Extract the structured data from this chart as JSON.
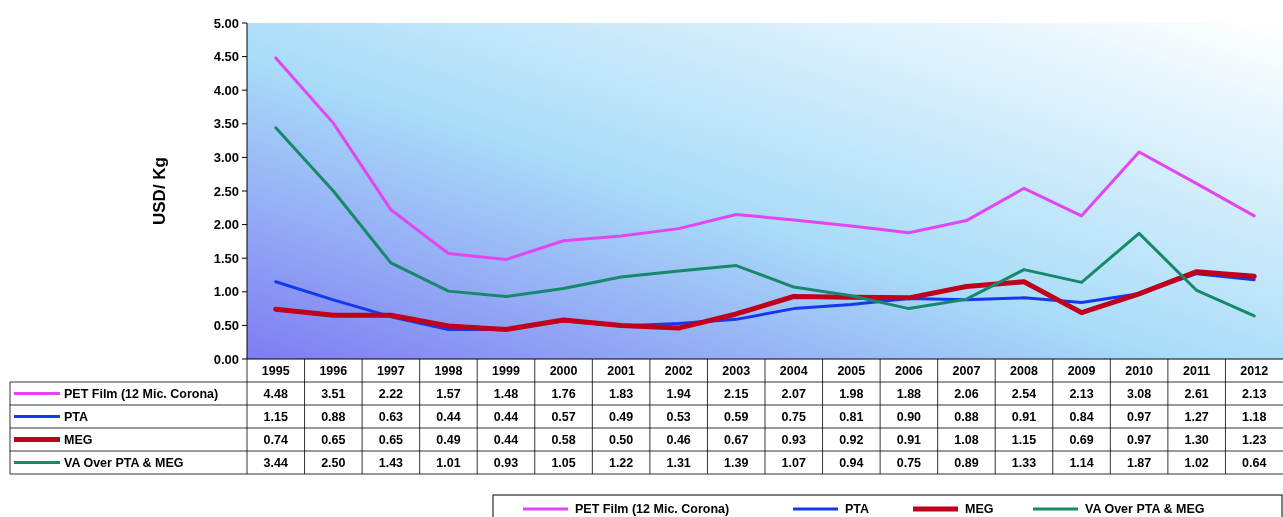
{
  "chart_data": {
    "type": "line",
    "ylabel": "USD/ Kg",
    "categories": [
      "1995",
      "1996",
      "1997",
      "1998",
      "1999",
      "2000",
      "2001",
      "2002",
      "2003",
      "2004",
      "2005",
      "2006",
      "2007",
      "2008",
      "2009",
      "2010",
      "2011",
      "2012"
    ],
    "series": [
      {
        "name": "PET Film (12 Mic. Corona)",
        "color": "#e246f2",
        "values": [
          4.48,
          3.51,
          2.22,
          1.57,
          1.48,
          1.76,
          1.83,
          1.94,
          2.15,
          2.07,
          1.98,
          1.88,
          2.06,
          2.54,
          2.13,
          3.08,
          2.61,
          2.13
        ],
        "value_labels": [
          "4.48",
          "3.51",
          "2.22",
          "1.57",
          "1.48",
          "1.76",
          "1.83",
          "1.94",
          "2.15",
          "2.07",
          "1.98",
          "1.88",
          "2.06",
          "2.54",
          "2.13",
          "3.08",
          "2.61",
          "2.13"
        ]
      },
      {
        "name": "PTA",
        "color": "#1438ee",
        "values": [
          1.15,
          0.88,
          0.63,
          0.44,
          0.44,
          0.57,
          0.49,
          0.53,
          0.59,
          0.75,
          0.81,
          0.9,
          0.88,
          0.91,
          0.84,
          0.97,
          1.27,
          1.18
        ],
        "value_labels": [
          "1.15",
          "0.88",
          "0.63",
          "0.44",
          "0.44",
          "0.57",
          "0.49",
          "0.53",
          "0.59",
          "0.75",
          "0.81",
          "0.90",
          "0.88",
          "0.91",
          "0.84",
          "0.97",
          "1.27",
          "1.18"
        ]
      },
      {
        "name": "MEG",
        "color": "#c0001a",
        "values": [
          0.74,
          0.65,
          0.65,
          0.49,
          0.44,
          0.58,
          0.5,
          0.46,
          0.67,
          0.93,
          0.92,
          0.91,
          1.08,
          1.15,
          0.69,
          0.97,
          1.3,
          1.23
        ],
        "value_labels": [
          "0.74",
          "0.65",
          "0.65",
          "0.49",
          "0.44",
          "0.58",
          "0.50",
          "0.46",
          "0.67",
          "0.93",
          "0.92",
          "0.91",
          "1.08",
          "1.15",
          "0.69",
          "0.97",
          "1.30",
          "1.23"
        ]
      },
      {
        "name": "VA Over PTA & MEG",
        "color": "#16896a",
        "values": [
          3.44,
          2.5,
          1.43,
          1.01,
          0.93,
          1.05,
          1.22,
          1.31,
          1.39,
          1.07,
          0.94,
          0.75,
          0.89,
          1.33,
          1.14,
          1.87,
          1.02,
          0.64
        ],
        "value_labels": [
          "3.44",
          "2.50",
          "1.43",
          "1.01",
          "0.93",
          "1.05",
          "1.22",
          "1.31",
          "1.39",
          "1.07",
          "0.94",
          "0.75",
          "0.89",
          "1.33",
          "1.14",
          "1.87",
          "1.02",
          "0.64"
        ]
      }
    ],
    "ylim": [
      0,
      5
    ],
    "yticks": [
      {
        "value": 0,
        "label": "0.00"
      },
      {
        "value": 0.5,
        "label": "0.50"
      },
      {
        "value": 1,
        "label": "1.00"
      },
      {
        "value": 1.5,
        "label": "1.50"
      },
      {
        "value": 2,
        "label": "2.00"
      },
      {
        "value": 2.5,
        "label": "2.50"
      },
      {
        "value": 3,
        "label": "3.00"
      },
      {
        "value": 3.5,
        "label": "3.50"
      },
      {
        "value": 4,
        "label": "4.00"
      },
      {
        "value": 4.5,
        "label": "4.50"
      },
      {
        "value": 5,
        "label": "5.00"
      }
    ],
    "grid": false,
    "legend": "bottom",
    "marker": "none",
    "line_style": "solid"
  }
}
